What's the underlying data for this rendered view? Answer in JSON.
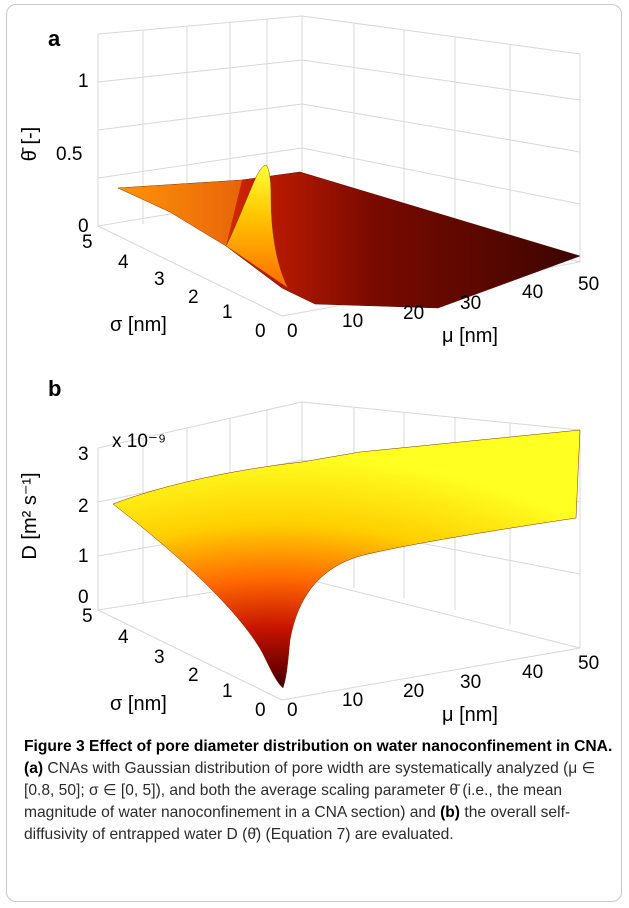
{
  "figure": {
    "caption": {
      "title": "Figure 3 Effect of pore diameter distribution on water nanoconfinement in CNA.",
      "text_a_label": "(a)",
      "text_a": "CNAs with Gaussian distribution of pore width are systematically analyzed (μ ∈ [0.8, 50]; σ ∈ [0, 5]), and both the average scaling parameter θ̄ (i.e., the mean magnitude of water nanoconfinement in a CNA section) and",
      "text_b_label": "(b)",
      "text_b": "the overall self-diffusivity of entrapped water D (θ̄) (Equation 7) are evaluated."
    }
  },
  "chart_data": [
    {
      "panel_label": "a",
      "type": "surface",
      "zlabel": "θ̄ [-]",
      "ylabel": "σ [nm]",
      "xlabel": "μ [nm]",
      "xlim": [
        0,
        50
      ],
      "ylim": [
        0,
        5
      ],
      "zlim": [
        0,
        1
      ],
      "x_ticks": [
        "0",
        "10",
        "20",
        "30",
        "40",
        "50"
      ],
      "y_ticks": [
        "0",
        "1",
        "2",
        "3",
        "4",
        "5"
      ],
      "z_ticks": [
        "0",
        "0.5",
        "1"
      ],
      "colormap": "hot",
      "samples": [
        {
          "mu": 0.8,
          "sigma": 0,
          "theta": 0.47
        },
        {
          "mu": 0.8,
          "sigma": 5,
          "theta": 0.28
        },
        {
          "mu": 5,
          "sigma": 0,
          "theta": 0.1
        },
        {
          "mu": 10,
          "sigma": 5,
          "theta": 0.05
        },
        {
          "mu": 50,
          "sigma": 0,
          "theta": 0.01
        }
      ]
    },
    {
      "panel_label": "b",
      "type": "surface",
      "zlabel": "D [m² s⁻¹]",
      "z_exponent": "x 10⁻⁹",
      "ylabel": "σ [nm]",
      "xlabel": "μ [nm]",
      "xlim": [
        0,
        50
      ],
      "ylim": [
        0,
        5
      ],
      "zlim": [
        0,
        3
      ],
      "x_ticks": [
        "0",
        "10",
        "20",
        "30",
        "40",
        "50"
      ],
      "y_ticks": [
        "0",
        "1",
        "2",
        "3",
        "4",
        "5"
      ],
      "z_ticks": [
        "0",
        "1",
        "2",
        "3"
      ],
      "colormap": "hot",
      "samples": [
        {
          "mu": 0.8,
          "sigma": 0,
          "D": 0.1
        },
        {
          "mu": 0.8,
          "sigma": 5,
          "D": 1.9
        },
        {
          "mu": 10,
          "sigma": 0,
          "D": 2.0
        },
        {
          "mu": 50,
          "sigma": 0,
          "D": 2.3
        },
        {
          "mu": 50,
          "sigma": 5,
          "D": 2.3
        }
      ]
    }
  ]
}
